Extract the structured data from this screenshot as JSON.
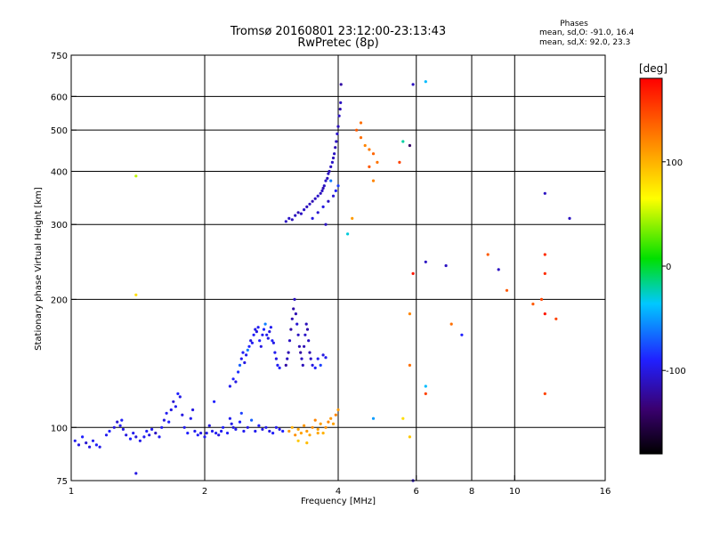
{
  "chart_data": {
    "type": "scatter",
    "title": "Tromsø 20160801 23:12:00-23:13:43",
    "subtitle": "RwPretec (8p)",
    "xlabel": "Frequency [MHz]",
    "ylabel": "Stationary phase Virtual Height [km]",
    "x_scale": "log",
    "y_scale": "log",
    "xlim": [
      1,
      16
    ],
    "ylim": [
      75,
      750
    ],
    "x_ticks": [
      1,
      2,
      4,
      6,
      8,
      10,
      16
    ],
    "x_tick_labels": [
      "1",
      "2",
      "4",
      "6",
      "8",
      "10",
      "16"
    ],
    "x_gridlines": [
      2,
      4,
      6,
      8,
      10
    ],
    "y_ticks": [
      75,
      100,
      200,
      300,
      400,
      500,
      600,
      750
    ],
    "y_tick_labels": [
      "75",
      "100",
      "200",
      "300",
      "400",
      "500",
      "600",
      "750"
    ],
    "y_gridlines": [
      100,
      200,
      300,
      400,
      500,
      600
    ],
    "grid": true,
    "stats": {
      "heading": "Phases",
      "line_o": "mean, sd,O: -91.0, 16.4",
      "line_x": "mean, sd,X:  92.0, 23.3"
    },
    "colorbar": {
      "unit": "[deg]",
      "range": [
        -180,
        180
      ],
      "ticks": [
        -100,
        0,
        100
      ],
      "tick_labels": [
        "-100",
        "0",
        "100"
      ]
    },
    "points": [
      [
        1.02,
        93,
        -95
      ],
      [
        1.04,
        91,
        -100
      ],
      [
        1.06,
        95,
        -90
      ],
      [
        1.08,
        92,
        -105
      ],
      [
        1.1,
        90,
        -100
      ],
      [
        1.12,
        93,
        -95
      ],
      [
        1.14,
        91,
        -92
      ],
      [
        1.16,
        90,
        -98
      ],
      [
        1.2,
        96,
        -95
      ],
      [
        1.22,
        98,
        -90
      ],
      [
        1.25,
        100,
        -100
      ],
      [
        1.27,
        103,
        -105
      ],
      [
        1.29,
        101,
        -95
      ],
      [
        1.3,
        104,
        -92
      ],
      [
        1.31,
        99,
        -98
      ],
      [
        1.33,
        96,
        -100
      ],
      [
        1.36,
        94,
        -90
      ],
      [
        1.38,
        97,
        -95
      ],
      [
        1.4,
        95,
        -102
      ],
      [
        1.43,
        93,
        -97
      ],
      [
        1.46,
        95,
        -95
      ],
      [
        1.48,
        98,
        -92
      ],
      [
        1.5,
        96,
        -100
      ],
      [
        1.52,
        99,
        -95
      ],
      [
        1.55,
        97,
        -110
      ],
      [
        1.58,
        95,
        -95
      ],
      [
        1.6,
        100,
        -95
      ],
      [
        1.62,
        104,
        -100
      ],
      [
        1.64,
        108,
        -95
      ],
      [
        1.66,
        103,
        -90
      ],
      [
        1.68,
        110,
        -100
      ],
      [
        1.7,
        115,
        -105
      ],
      [
        1.72,
        112,
        -95
      ],
      [
        1.74,
        120,
        -90
      ],
      [
        1.76,
        118,
        -98
      ],
      [
        1.78,
        107,
        -100
      ],
      [
        1.8,
        100,
        -95
      ],
      [
        1.83,
        97,
        -90
      ],
      [
        1.86,
        105,
        -95
      ],
      [
        1.88,
        110,
        -100
      ],
      [
        1.9,
        98,
        -95
      ],
      [
        1.93,
        96,
        -92
      ],
      [
        1.96,
        97,
        -100
      ],
      [
        2.0,
        95,
        -95
      ],
      [
        2.02,
        97,
        -98
      ],
      [
        2.05,
        101,
        -100
      ],
      [
        2.08,
        98,
        -95
      ],
      [
        2.1,
        115,
        -90
      ],
      [
        2.12,
        97,
        -95
      ],
      [
        2.15,
        96,
        -100
      ],
      [
        2.18,
        98,
        -95
      ],
      [
        2.2,
        100,
        -90
      ],
      [
        2.25,
        97,
        -92
      ],
      [
        2.28,
        105,
        -95
      ],
      [
        2.3,
        102,
        -98
      ],
      [
        2.32,
        100,
        -100
      ],
      [
        2.35,
        99,
        -95
      ],
      [
        2.4,
        103,
        -90
      ],
      [
        2.42,
        108,
        -80
      ],
      [
        2.45,
        98,
        -95
      ],
      [
        2.5,
        100,
        -100
      ],
      [
        2.55,
        104,
        -70
      ],
      [
        2.6,
        98,
        -95
      ],
      [
        2.65,
        101,
        -92
      ],
      [
        2.7,
        99,
        -98
      ],
      [
        2.75,
        100,
        -95
      ],
      [
        2.8,
        98,
        -100
      ],
      [
        2.85,
        97,
        -92
      ],
      [
        2.9,
        100,
        -95
      ],
      [
        2.95,
        99,
        -98
      ],
      [
        3.0,
        98,
        -90
      ],
      [
        2.28,
        125,
        -95
      ],
      [
        2.32,
        130,
        -90
      ],
      [
        2.35,
        128,
        -100
      ],
      [
        2.38,
        135,
        -85
      ],
      [
        2.4,
        140,
        -70
      ],
      [
        2.42,
        145,
        -95
      ],
      [
        2.44,
        150,
        -92
      ],
      [
        2.46,
        142,
        -100
      ],
      [
        2.48,
        148,
        -95
      ],
      [
        2.5,
        152,
        -60
      ],
      [
        2.52,
        155,
        -90
      ],
      [
        2.54,
        160,
        -100
      ],
      [
        2.56,
        158,
        -95
      ],
      [
        2.58,
        165,
        -92
      ],
      [
        2.6,
        170,
        -98
      ],
      [
        2.62,
        168,
        -100
      ],
      [
        2.64,
        172,
        -95
      ],
      [
        2.66,
        160,
        -90
      ],
      [
        2.68,
        155,
        -100
      ],
      [
        2.7,
        165,
        -95
      ],
      [
        2.72,
        170,
        -88
      ],
      [
        2.74,
        175,
        -60
      ],
      [
        2.76,
        165,
        -95
      ],
      [
        2.78,
        162,
        -98
      ],
      [
        2.8,
        168,
        -100
      ],
      [
        2.82,
        172,
        -95
      ],
      [
        2.84,
        160,
        -92
      ],
      [
        2.86,
        158,
        -98
      ],
      [
        2.88,
        150,
        -95
      ],
      [
        2.9,
        145,
        -100
      ],
      [
        2.92,
        140,
        -95
      ],
      [
        2.95,
        138,
        -90
      ],
      [
        3.05,
        140,
        -120
      ],
      [
        3.07,
        145,
        -110
      ],
      [
        3.09,
        150,
        -115
      ],
      [
        3.11,
        160,
        -110
      ],
      [
        3.13,
        170,
        -120
      ],
      [
        3.15,
        180,
        -115
      ],
      [
        3.17,
        190,
        -118
      ],
      [
        3.19,
        200,
        -110
      ],
      [
        3.21,
        185,
        -115
      ],
      [
        3.23,
        175,
        -105
      ],
      [
        3.25,
        165,
        -110
      ],
      [
        3.27,
        155,
        -115
      ],
      [
        3.29,
        150,
        -120
      ],
      [
        3.31,
        145,
        -110
      ],
      [
        3.33,
        140,
        -112
      ],
      [
        3.35,
        155,
        -115
      ],
      [
        3.37,
        165,
        -108
      ],
      [
        3.39,
        175,
        -112
      ],
      [
        3.41,
        170,
        -118
      ],
      [
        3.43,
        160,
        -110
      ],
      [
        3.45,
        150,
        -115
      ],
      [
        3.47,
        145,
        -110
      ],
      [
        3.5,
        140,
        -100
      ],
      [
        3.55,
        138,
        -90
      ],
      [
        3.6,
        145,
        -95
      ],
      [
        3.65,
        140,
        -80
      ],
      [
        3.7,
        148,
        -100
      ],
      [
        3.75,
        146,
        -95
      ],
      [
        3.1,
        98,
        110
      ],
      [
        3.15,
        100,
        100
      ],
      [
        3.2,
        96,
        115
      ],
      [
        3.25,
        99,
        105
      ],
      [
        3.3,
        97,
        108
      ],
      [
        3.35,
        101,
        112
      ],
      [
        3.4,
        98,
        110
      ],
      [
        3.45,
        96,
        105
      ],
      [
        3.5,
        100,
        115
      ],
      [
        3.55,
        104,
        120
      ],
      [
        3.6,
        99,
        108
      ],
      [
        3.65,
        102,
        110
      ],
      [
        3.7,
        97,
        100
      ],
      [
        3.75,
        100,
        115
      ],
      [
        3.8,
        103,
        118
      ],
      [
        3.85,
        105,
        112
      ],
      [
        3.9,
        102,
        108
      ],
      [
        3.95,
        107,
        120
      ],
      [
        4.0,
        110,
        110
      ],
      [
        3.25,
        93,
        90
      ],
      [
        3.4,
        92,
        95
      ],
      [
        3.6,
        97,
        105
      ],
      [
        3.05,
        305,
        -110
      ],
      [
        3.1,
        310,
        -108
      ],
      [
        3.15,
        308,
        -112
      ],
      [
        3.2,
        315,
        -110
      ],
      [
        3.25,
        320,
        -115
      ],
      [
        3.3,
        318,
        -110
      ],
      [
        3.35,
        325,
        -108
      ],
      [
        3.4,
        330,
        -112
      ],
      [
        3.45,
        335,
        -110
      ],
      [
        3.5,
        340,
        -115
      ],
      [
        3.55,
        345,
        -110
      ],
      [
        3.6,
        350,
        -108
      ],
      [
        3.65,
        355,
        -112
      ],
      [
        3.68,
        360,
        -110
      ],
      [
        3.7,
        365,
        -115
      ],
      [
        3.72,
        370,
        -110
      ],
      [
        3.75,
        380,
        -108
      ],
      [
        3.78,
        385,
        -112
      ],
      [
        3.8,
        395,
        -110
      ],
      [
        3.82,
        400,
        -115
      ],
      [
        3.85,
        410,
        -110
      ],
      [
        3.88,
        420,
        -108
      ],
      [
        3.9,
        430,
        -112
      ],
      [
        3.92,
        440,
        -110
      ],
      [
        3.94,
        455,
        -115
      ],
      [
        3.96,
        470,
        -110
      ],
      [
        3.98,
        490,
        -108
      ],
      [
        4.0,
        510,
        -112
      ],
      [
        4.02,
        540,
        -110
      ],
      [
        4.04,
        560,
        -115
      ],
      [
        4.05,
        580,
        -110
      ],
      [
        4.06,
        640,
        -120
      ],
      [
        3.5,
        310,
        -100
      ],
      [
        3.6,
        320,
        -105
      ],
      [
        3.7,
        330,
        -100
      ],
      [
        3.8,
        340,
        -110
      ],
      [
        3.9,
        350,
        -105
      ],
      [
        3.95,
        360,
        -90
      ],
      [
        4.0,
        370,
        -80
      ],
      [
        3.85,
        380,
        -60
      ],
      [
        3.75,
        300,
        -110
      ],
      [
        4.4,
        500,
        140
      ],
      [
        4.5,
        480,
        130
      ],
      [
        4.6,
        460,
        120
      ],
      [
        4.7,
        450,
        125
      ],
      [
        4.8,
        440,
        135
      ],
      [
        4.9,
        420,
        128
      ],
      [
        4.5,
        520,
        130
      ],
      [
        4.7,
        410,
        140
      ],
      [
        4.8,
        380,
        120
      ],
      [
        4.3,
        310,
        110
      ],
      [
        5.6,
        470,
        -20
      ],
      [
        5.5,
        420,
        150
      ],
      [
        5.8,
        460,
        -140
      ],
      [
        5.9,
        640,
        -110
      ],
      [
        6.3,
        650,
        -40
      ],
      [
        4.2,
        285,
        -30
      ],
      [
        4.8,
        105,
        -50
      ],
      [
        5.8,
        140,
        130
      ],
      [
        5.8,
        185,
        120
      ],
      [
        5.9,
        230,
        170
      ],
      [
        5.8,
        95,
        90
      ],
      [
        5.6,
        105,
        80
      ],
      [
        5.9,
        75,
        -110
      ],
      [
        6.3,
        125,
        -40
      ],
      [
        6.3,
        120,
        150
      ],
      [
        6.3,
        245,
        -110
      ],
      [
        7.0,
        240,
        -110
      ],
      [
        7.2,
        175,
        130
      ],
      [
        7.6,
        165,
        -90
      ],
      [
        8.7,
        255,
        140
      ],
      [
        9.2,
        235,
        -110
      ],
      [
        9.6,
        210,
        140
      ],
      [
        11.0,
        195,
        140
      ],
      [
        11.5,
        200,
        150
      ],
      [
        11.7,
        230,
        160
      ],
      [
        11.7,
        255,
        160
      ],
      [
        11.7,
        185,
        170
      ],
      [
        11.7,
        355,
        -110
      ],
      [
        12.4,
        180,
        150
      ],
      [
        13.3,
        310,
        -110
      ],
      [
        11.7,
        120,
        150
      ],
      [
        1.4,
        390,
        50
      ],
      [
        1.4,
        205,
        80
      ],
      [
        1.4,
        78,
        -100
      ]
    ]
  }
}
